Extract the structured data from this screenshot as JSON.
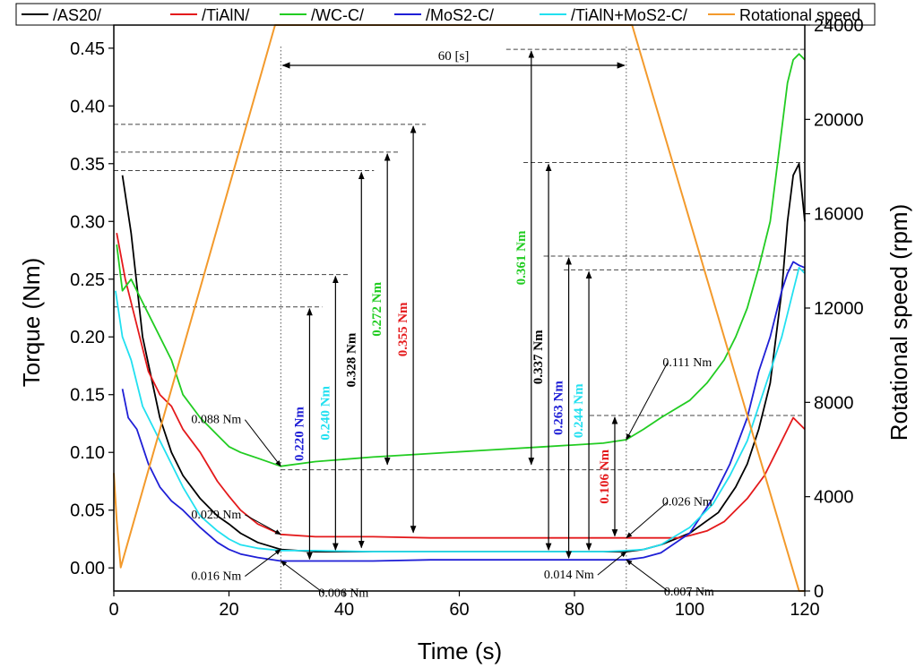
{
  "chart_data": {
    "type": "line",
    "xlabel": "Time (s)",
    "ylabel": "Torque (Nm)",
    "y2label": "Rotational speed (rpm)",
    "xlim": [
      0,
      120
    ],
    "ylim": [
      -0.02,
      0.47
    ],
    "y2lim": [
      0,
      24000
    ],
    "xticks": [
      "0",
      "20",
      "40",
      "60",
      "80",
      "100",
      "120"
    ],
    "yticks": [
      "0.00",
      "0.05",
      "0.10",
      "0.15",
      "0.20",
      "0.25",
      "0.30",
      "0.35",
      "0.40",
      "0.45"
    ],
    "y2ticks": [
      "0",
      "4000",
      "8000",
      "12000",
      "16000",
      "20000",
      "24000"
    ],
    "legend_position": "top",
    "series": [
      {
        "name": "/AS20/",
        "color": "#000000",
        "axis": "left",
        "x": [
          1.5,
          3,
          5,
          8,
          10,
          12,
          15,
          18,
          20,
          22,
          25,
          27,
          29,
          35,
          45,
          55,
          65,
          75,
          85,
          89,
          92,
          95,
          100,
          105,
          108,
          110,
          112,
          114,
          116,
          117,
          118,
          119,
          120
        ],
        "y": [
          0.34,
          0.29,
          0.2,
          0.13,
          0.1,
          0.08,
          0.06,
          0.045,
          0.038,
          0.03,
          0.022,
          0.019,
          0.016,
          0.014,
          0.014,
          0.014,
          0.014,
          0.014,
          0.014,
          0.014,
          0.016,
          0.02,
          0.03,
          0.048,
          0.07,
          0.09,
          0.12,
          0.16,
          0.24,
          0.3,
          0.34,
          0.35,
          0.3
        ]
      },
      {
        "name": "/TiAlN/",
        "color": "#e41a1c",
        "axis": "left",
        "x": [
          0.5,
          2,
          4,
          6,
          8,
          10,
          12,
          15,
          18,
          20,
          22,
          25,
          29,
          35,
          45,
          55,
          65,
          75,
          85,
          89,
          92,
          95,
          98,
          100,
          103,
          106,
          110,
          113,
          115,
          117,
          118,
          119,
          120
        ],
        "y": [
          0.29,
          0.25,
          0.21,
          0.17,
          0.15,
          0.14,
          0.12,
          0.1,
          0.075,
          0.062,
          0.05,
          0.038,
          0.029,
          0.027,
          0.027,
          0.026,
          0.026,
          0.026,
          0.026,
          0.026,
          0.026,
          0.026,
          0.026,
          0.028,
          0.032,
          0.04,
          0.06,
          0.08,
          0.1,
          0.12,
          0.13,
          0.125,
          0.12
        ]
      },
      {
        "name": "/WC-C/",
        "color": "#22cc22",
        "axis": "left",
        "x": [
          0.5,
          1.5,
          3,
          5,
          7,
          10,
          12,
          15,
          18,
          20,
          22,
          25,
          29,
          35,
          45,
          55,
          65,
          75,
          85,
          89,
          92,
          95,
          100,
          103,
          106,
          108,
          110,
          112,
          114,
          115,
          116,
          117,
          118,
          119,
          120
        ],
        "y": [
          0.28,
          0.24,
          0.25,
          0.23,
          0.21,
          0.18,
          0.15,
          0.13,
          0.115,
          0.105,
          0.1,
          0.095,
          0.088,
          0.092,
          0.096,
          0.099,
          0.102,
          0.105,
          0.108,
          0.111,
          0.12,
          0.13,
          0.145,
          0.16,
          0.18,
          0.2,
          0.225,
          0.26,
          0.3,
          0.34,
          0.38,
          0.42,
          0.44,
          0.445,
          0.44
        ]
      },
      {
        "name": "/MoS2-C/",
        "color": "#1f1fd6",
        "axis": "left",
        "x": [
          1.5,
          2.5,
          4,
          6,
          8,
          10,
          12,
          15,
          18,
          20,
          22,
          25,
          29,
          35,
          45,
          55,
          65,
          75,
          85,
          89,
          92,
          95,
          100,
          104,
          107,
          110,
          112,
          114,
          116,
          117,
          118,
          119,
          120
        ],
        "y": [
          0.155,
          0.13,
          0.12,
          0.09,
          0.07,
          0.058,
          0.05,
          0.035,
          0.022,
          0.016,
          0.012,
          0.009,
          0.006,
          0.006,
          0.006,
          0.007,
          0.007,
          0.007,
          0.007,
          0.007,
          0.009,
          0.013,
          0.03,
          0.06,
          0.09,
          0.13,
          0.17,
          0.2,
          0.24,
          0.255,
          0.265,
          0.262,
          0.26
        ]
      },
      {
        "name": "/TiAlN+MoS2-C/",
        "color": "#22e0f0",
        "axis": "left",
        "x": [
          0.3,
          1.5,
          3,
          5,
          7,
          10,
          12,
          15,
          18,
          20,
          22,
          25,
          29,
          35,
          45,
          55,
          65,
          75,
          85,
          89,
          92,
          95,
          100,
          104,
          107,
          110,
          112,
          114,
          116,
          118,
          119,
          120
        ],
        "y": [
          0.24,
          0.2,
          0.18,
          0.14,
          0.12,
          0.09,
          0.07,
          0.045,
          0.032,
          0.025,
          0.02,
          0.017,
          0.015,
          0.015,
          0.014,
          0.014,
          0.014,
          0.014,
          0.014,
          0.015,
          0.016,
          0.02,
          0.035,
          0.055,
          0.08,
          0.11,
          0.14,
          0.17,
          0.2,
          0.24,
          0.26,
          0.255
        ]
      },
      {
        "name": "Rotational speed",
        "color": "#f39a2c",
        "axis": "right",
        "x": [
          0,
          0.5,
          1.2,
          28,
          90,
          119,
          120
        ],
        "y": [
          5000,
          3000,
          1000,
          24000,
          24000,
          0,
          0
        ]
      }
    ],
    "annotations": {
      "interval_label": "60 [s]",
      "running_labels": [
        {
          "text": "0.088 Nm",
          "x": 29,
          "y": 0.088,
          "color": "#000000"
        },
        {
          "text": "0.029 Nm",
          "x": 29,
          "y": 0.029,
          "color": "#000000"
        },
        {
          "text": "0.016 Nm",
          "x": 29,
          "y": 0.016,
          "color": "#000000"
        },
        {
          "text": "0.006 Nm",
          "x": 29,
          "y": 0.006,
          "color": "#000000"
        },
        {
          "text": "0.111 Nm",
          "x": 89,
          "y": 0.111,
          "color": "#000000"
        },
        {
          "text": "0.026 Nm",
          "x": 89,
          "y": 0.026,
          "color": "#000000"
        },
        {
          "text": "0.014 Nm",
          "x": 89,
          "y": 0.014,
          "color": "#000000"
        },
        {
          "text": "0.007 Nm",
          "x": 89,
          "y": 0.007,
          "color": "#000000"
        }
      ],
      "start_differences": [
        {
          "text": "0.220 Nm",
          "x": 34,
          "from": 0.006,
          "to": 0.226,
          "color": "#1f1fd6"
        },
        {
          "text": "0.240 Nm",
          "x": 38.5,
          "from": 0.014,
          "to": 0.254,
          "color": "#22e0f0"
        },
        {
          "text": "0.328 Nm",
          "x": 43,
          "from": 0.016,
          "to": 0.344,
          "color": "#000000"
        },
        {
          "text": "0.272 Nm",
          "x": 47.5,
          "from": 0.088,
          "to": 0.36,
          "color": "#22cc22"
        },
        {
          "text": "0.355 Nm",
          "x": 52,
          "from": 0.029,
          "to": 0.384,
          "color": "#e41a1c"
        }
      ],
      "end_differences": [
        {
          "text": "0.361 Nm",
          "x": 72.5,
          "from": 0.088,
          "to": 0.449,
          "color": "#22cc22"
        },
        {
          "text": "0.337 Nm",
          "x": 75.5,
          "from": 0.014,
          "to": 0.351,
          "color": "#000000"
        },
        {
          "text": "0.263 Nm",
          "x": 79,
          "from": 0.007,
          "to": 0.27,
          "color": "#1f1fd6"
        },
        {
          "text": "0.244 Nm",
          "x": 82.5,
          "from": 0.014,
          "to": 0.258,
          "color": "#22e0f0"
        },
        {
          "text": "0.106 Nm",
          "x": 87,
          "from": 0.026,
          "to": 0.132,
          "color": "#e41a1c"
        }
      ]
    }
  }
}
